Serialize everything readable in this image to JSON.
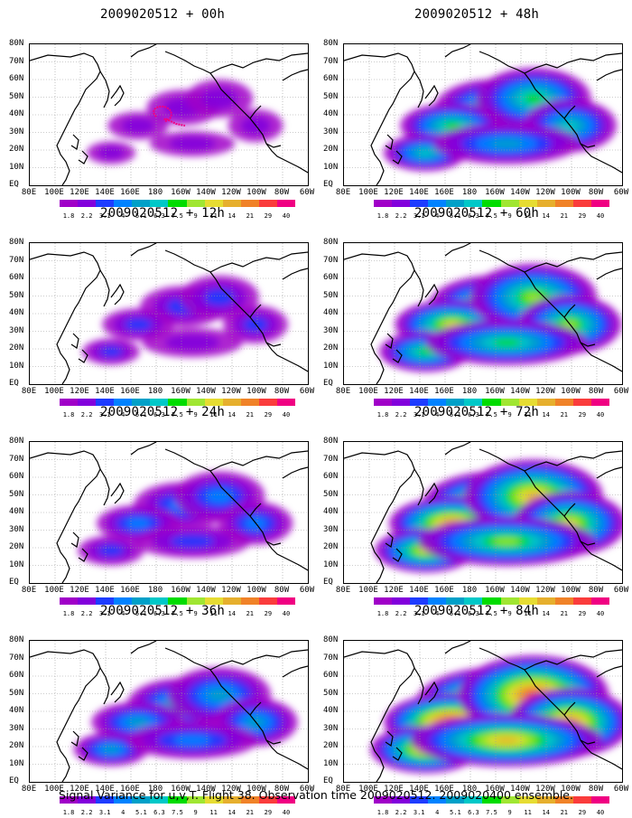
{
  "caption": "Signal Variance for u,v,T. Flight 38. Observation time 2009020512. 2009020400 ensemble.",
  "panels": [
    {
      "title": "2009020512 + 00h",
      "level": 0
    },
    {
      "title": "2009020512 + 12h",
      "level": 1
    },
    {
      "title": "2009020512 + 24h",
      "level": 2
    },
    {
      "title": "2009020512 + 36h",
      "level": 3
    },
    {
      "title": "2009020512 + 48h",
      "level": 4
    },
    {
      "title": "2009020512 + 60h",
      "level": 5
    },
    {
      "title": "2009020512 + 72h",
      "level": 6
    },
    {
      "title": "2009020512 + 84h",
      "level": 7
    }
  ],
  "lat_labels": [
    "80N",
    "70N",
    "60N",
    "50N",
    "40N",
    "30N",
    "20N",
    "10N",
    "EQ"
  ],
  "lon_labels": [
    "80E",
    "100E",
    "120E",
    "140E",
    "160E",
    "180",
    "160W",
    "140W",
    "120W",
    "100W",
    "80W",
    "60W"
  ],
  "colorbar": {
    "labels": [
      "1.8",
      "2.2",
      "3.1",
      "4",
      "5.1",
      "6.3",
      "7.5",
      "9",
      "11",
      "14",
      "21",
      "29",
      "40"
    ],
    "colors": [
      "#a000c8",
      "#8200dc",
      "#1e3cff",
      "#0082ff",
      "#00a0c8",
      "#00c8c8",
      "#00dc00",
      "#a0e632",
      "#e6dc32",
      "#e6af2d",
      "#f08228",
      "#fa3c3c",
      "#f00082"
    ]
  },
  "colors": {
    "land_outline": "#000000",
    "grid": "#999999",
    "flight_track": "#f00082"
  }
}
